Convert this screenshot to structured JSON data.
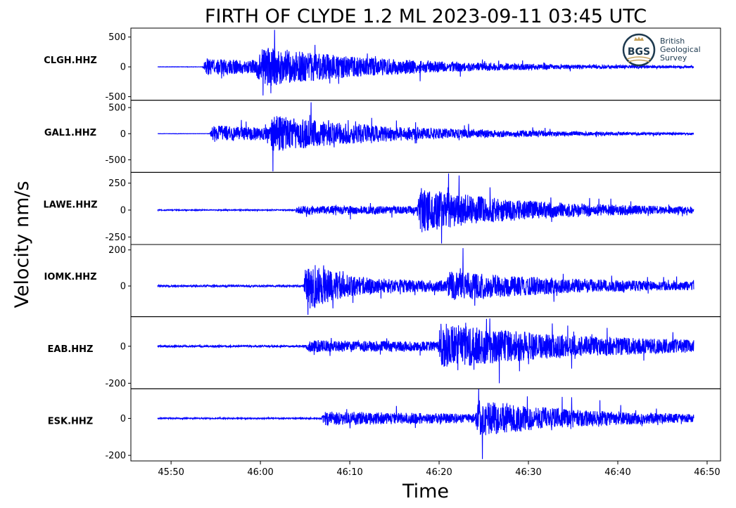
{
  "chart_data": {
    "type": "line",
    "title": "FIRTH OF CLYDE 1.2 ML   2023-09-11 03:45 UTC",
    "xlabel": "Time",
    "ylabel": "Velocity nm/s",
    "x_ticks": [
      "45:50",
      "46:00",
      "46:10",
      "46:20",
      "46:30",
      "46:40",
      "46:50"
    ],
    "x_tick_seconds": [
      110,
      120,
      130,
      140,
      150,
      160,
      170
    ],
    "x_range_seconds": [
      105.5,
      171.5
    ],
    "trace_range_seconds": [
      108.5,
      168.5
    ],
    "line_color": "#0000ff",
    "grid": false,
    "series": [
      {
        "name": "CLGH.HHZ",
        "ylim": [
          -560,
          650
        ],
        "y_ticks": [
          500,
          0,
          -500
        ],
        "y_tick_labels": [
          "500",
          "0",
          "-500"
        ],
        "noise_amp": 4,
        "peak_amp": 620,
        "min_amp": -480,
        "arrivals": [
          {
            "t": 113.5,
            "amp": 210,
            "decay": 18
          },
          {
            "t": 119.5,
            "amp": 380,
            "decay": 14
          }
        ]
      },
      {
        "name": "GAL1.HHZ",
        "ylim": [
          -740,
          640
        ],
        "y_ticks": [
          500,
          0,
          -500
        ],
        "y_tick_labels": [
          "500",
          "0",
          "-500"
        ],
        "noise_amp": 4,
        "peak_amp": 600,
        "min_amp": -720,
        "arrivals": [
          {
            "t": 114.3,
            "amp": 230,
            "decay": 20
          },
          {
            "t": 121.0,
            "amp": 360,
            "decay": 13
          }
        ]
      },
      {
        "name": "LAWE.HHZ",
        "ylim": [
          -320,
          350
        ],
        "y_ticks": [
          250,
          0,
          -250
        ],
        "y_tick_labels": [
          "250",
          "0",
          "-250"
        ],
        "noise_amp": 5,
        "peak_amp": 340,
        "min_amp": -310,
        "arrivals": [
          {
            "t": 123.8,
            "amp": 40,
            "decay": 60
          },
          {
            "t": 137.5,
            "amp": 200,
            "decay": 11
          }
        ]
      },
      {
        "name": "IOMK.HHZ",
        "ylim": [
          -170,
          230
        ],
        "y_ticks": [
          200,
          0
        ],
        "y_tick_labels": [
          "200",
          "0"
        ],
        "noise_amp": 6,
        "peak_amp": 210,
        "min_amp": -160,
        "arrivals": [
          {
            "t": 124.8,
            "amp": 150,
            "decay": 3
          },
          {
            "t": 125.3,
            "amp": 45,
            "decay": 40
          },
          {
            "t": 140.8,
            "amp": 70,
            "decay": 12
          }
        ]
      },
      {
        "name": "EAB.HHZ",
        "ylim": [
          -230,
          160
        ],
        "y_ticks": [
          0,
          -200
        ],
        "y_tick_labels": [
          "0",
          "-200"
        ],
        "noise_amp": 5,
        "peak_amp": 150,
        "min_amp": -200,
        "arrivals": [
          {
            "t": 125.0,
            "amp": 30,
            "decay": 60
          },
          {
            "t": 139.8,
            "amp": 110,
            "decay": 16
          }
        ]
      },
      {
        "name": "ESK.HHZ",
        "ylim": [
          -230,
          160
        ],
        "y_ticks": [
          0,
          -200
        ],
        "y_tick_labels": [
          "0",
          "-200"
        ],
        "noise_amp": 5,
        "peak_amp": 160,
        "min_amp": -220,
        "arrivals": [
          {
            "t": 126.8,
            "amp": 60,
            "decay": 30
          },
          {
            "t": 144.0,
            "amp": 125,
            "decay": 12
          }
        ]
      }
    ]
  },
  "logo": {
    "monogram": "BGS",
    "line1": "British",
    "line2": "Geological",
    "line3": "Survey"
  }
}
